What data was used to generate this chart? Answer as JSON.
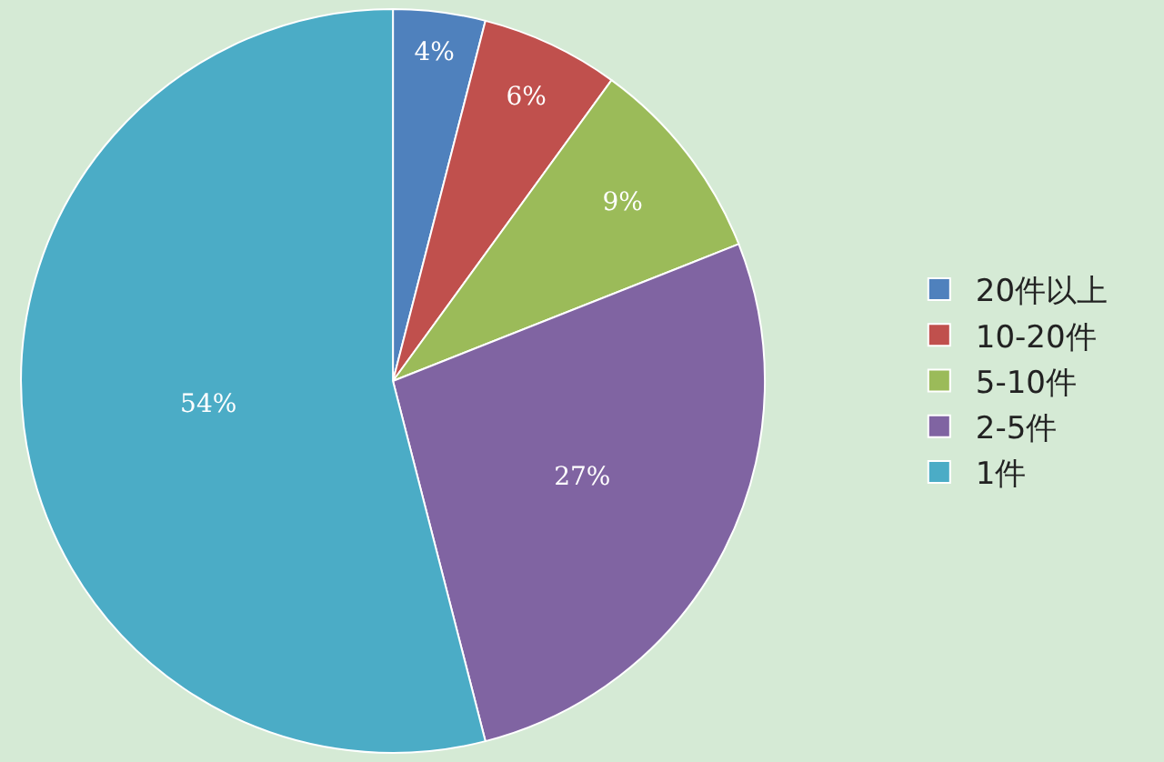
{
  "chart_data": {
    "type": "pie",
    "categories": [
      "20件以上",
      "10-20件",
      "5-10件",
      "2-5件",
      "1件"
    ],
    "values": [
      4,
      6,
      9,
      27,
      54
    ],
    "value_labels": [
      "4%",
      "6%",
      "9%",
      "27%",
      "54%"
    ],
    "colors": [
      "#4f81bd",
      "#c0504d",
      "#9bbb59",
      "#8064a2",
      "#4bacc6"
    ],
    "legend": "right"
  }
}
